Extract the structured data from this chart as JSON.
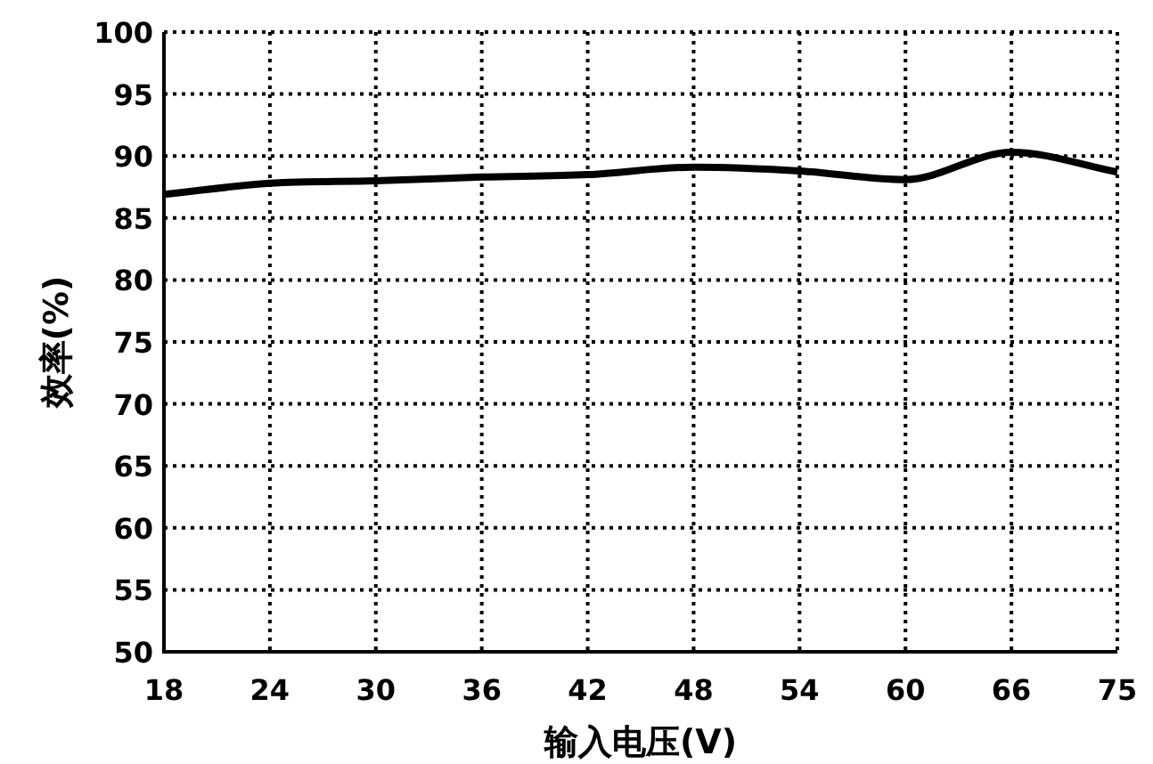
{
  "chart_data": {
    "type": "line",
    "xlabel": "输入电压(V)",
    "ylabel": "效率(%)",
    "categories": [
      "18",
      "24",
      "30",
      "36",
      "42",
      "48",
      "54",
      "60",
      "66",
      "75"
    ],
    "series": [
      {
        "color": "#000000",
        "values": [
          86.9,
          87.8,
          88.0,
          88.3,
          88.5,
          89.1,
          88.8,
          88.1,
          90.3,
          88.7
        ]
      }
    ],
    "ylim": [
      50,
      100
    ],
    "yticks": [
      50,
      55,
      60,
      65,
      70,
      75,
      80,
      85,
      90,
      95,
      100
    ],
    "grid": true,
    "marker": "none",
    "line_style": "solid"
  }
}
